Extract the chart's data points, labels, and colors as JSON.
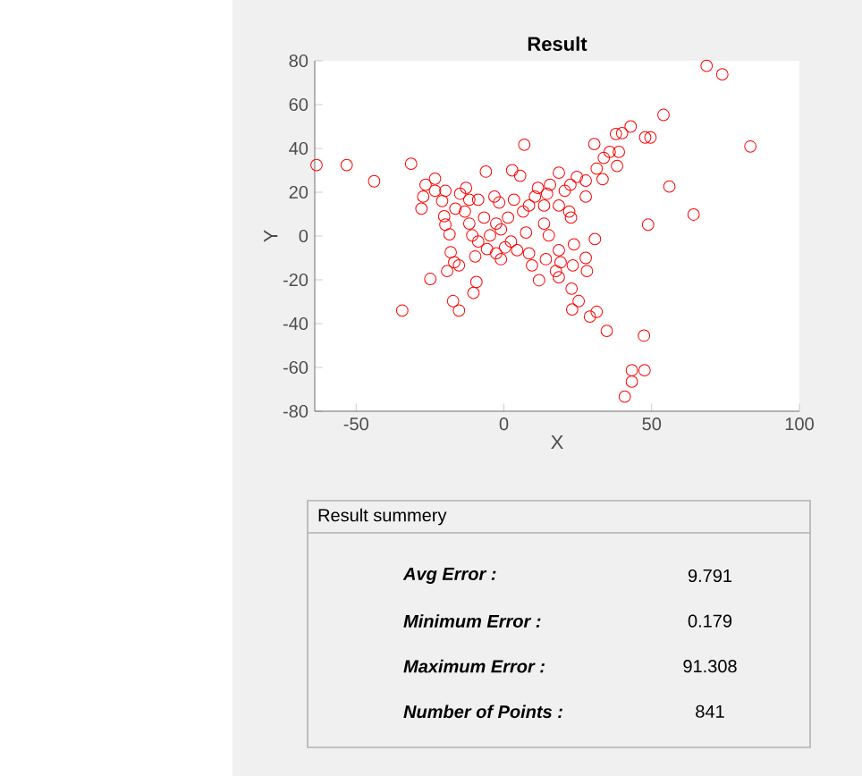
{
  "chart_data": [
    {
      "type": "scatter",
      "title": "Result",
      "xlabel": "X",
      "ylabel": "Y",
      "color": "#ff0000",
      "marker": "circle",
      "xlim": [
        -64,
        100
      ],
      "ylim": [
        -80,
        80
      ],
      "xticks": [
        -50,
        0,
        50,
        100
      ],
      "yticks": [
        -80,
        -60,
        -40,
        -20,
        0,
        20,
        40,
        60,
        80
      ],
      "x": [
        -63.4,
        -53.2,
        -43.9,
        -31.4,
        -34.4,
        -24.9,
        -17.2,
        -15.2,
        -10.3,
        -9.3,
        6.9,
        30.6,
        37.9,
        42.9,
        40,
        47.8,
        49.6,
        54,
        68.6,
        73.9,
        83.4,
        56,
        64.2,
        48.8,
        30.8,
        27.7,
        28.1,
        22.9,
        25.3,
        23.1,
        29.1,
        31.4,
        34.8,
        47.4,
        43.3,
        47.6,
        43.3,
        40.9,
        33.8,
        35.8,
        38.9,
        38.3,
        33.4,
        31.4,
        27.7,
        24.7,
        22.5,
        27.7,
        -27.9,
        -27.3,
        -26.5,
        -23.3,
        -19.8,
        -23.3,
        -20.9,
        -20.2,
        -19.8,
        -18.4,
        -18,
        -16.8,
        -19.2,
        -15.2,
        -14.8,
        -12.8,
        -13.2,
        -11.7,
        -10.7,
        -9.7,
        -8.7,
        -6.7,
        -6.1,
        -4.7,
        -5.7,
        -2.6,
        -1,
        -3.2,
        -1.6,
        -1,
        1.4,
        2.8,
        5.5,
        3.4,
        6.5,
        7.5,
        8.5,
        9.5,
        11.9,
        11.5,
        13.6,
        13.6,
        15.2,
        14.2,
        17.6,
        18.6,
        19.2,
        18.6,
        18.6,
        18.6,
        20.6,
        22.1,
        23.7,
        23.3,
        22.7,
        10.5,
        8.5,
        2.4,
        0.4,
        4.5,
        15.6,
        14.6,
        -2.6,
        -8.7,
        -11.7,
        -16.4
      ],
      "values": [
        32.4,
        32.4,
        25,
        33,
        -34,
        -19.6,
        -29.7,
        -34,
        -26,
        -21,
        41.7,
        42,
        46.6,
        50,
        47,
        45,
        45,
        55.3,
        77.7,
        73.8,
        40.9,
        22.6,
        9.8,
        5.2,
        -1.4,
        -10,
        -16,
        -24,
        -29.7,
        -33.5,
        -36.8,
        -34.6,
        -43.3,
        -45.5,
        -61.3,
        -61.3,
        -66.5,
        -73.3,
        35.7,
        38.4,
        38.4,
        32,
        26,
        30.8,
        25.3,
        27,
        23.4,
        18,
        12.5,
        18,
        23.4,
        26.2,
        20.7,
        20.7,
        16,
        9,
        5.2,
        0.8,
        -7.4,
        -12,
        -16,
        -13.4,
        19.3,
        22,
        11.2,
        5.7,
        0.3,
        -9.3,
        16.6,
        8.4,
        29.4,
        0.3,
        -6,
        -7.9,
        -10.6,
        18,
        15.3,
        3,
        8.4,
        30,
        27.5,
        16.6,
        11.2,
        1.6,
        -7.9,
        -13.4,
        -20.2,
        22,
        13.9,
        5.7,
        0.3,
        -10.6,
        -16,
        -18.8,
        -12,
        -6.5,
        13.9,
        28.9,
        20.7,
        11.2,
        -3.8,
        -13.4,
        8.4,
        18,
        13.9,
        -2.5,
        -5.2,
        -6.5,
        23.4,
        19.3,
        5.7,
        -2.5,
        16.6,
        12.5
      ]
    },
    {
      "type": "other",
      "title": "Result summery",
      "annotations": [
        "Avg Error :",
        "9.791",
        "Minimum Error :",
        "0.179",
        "Maximum Error :",
        "91.308",
        "Number of Points :",
        "841"
      ]
    }
  ]
}
